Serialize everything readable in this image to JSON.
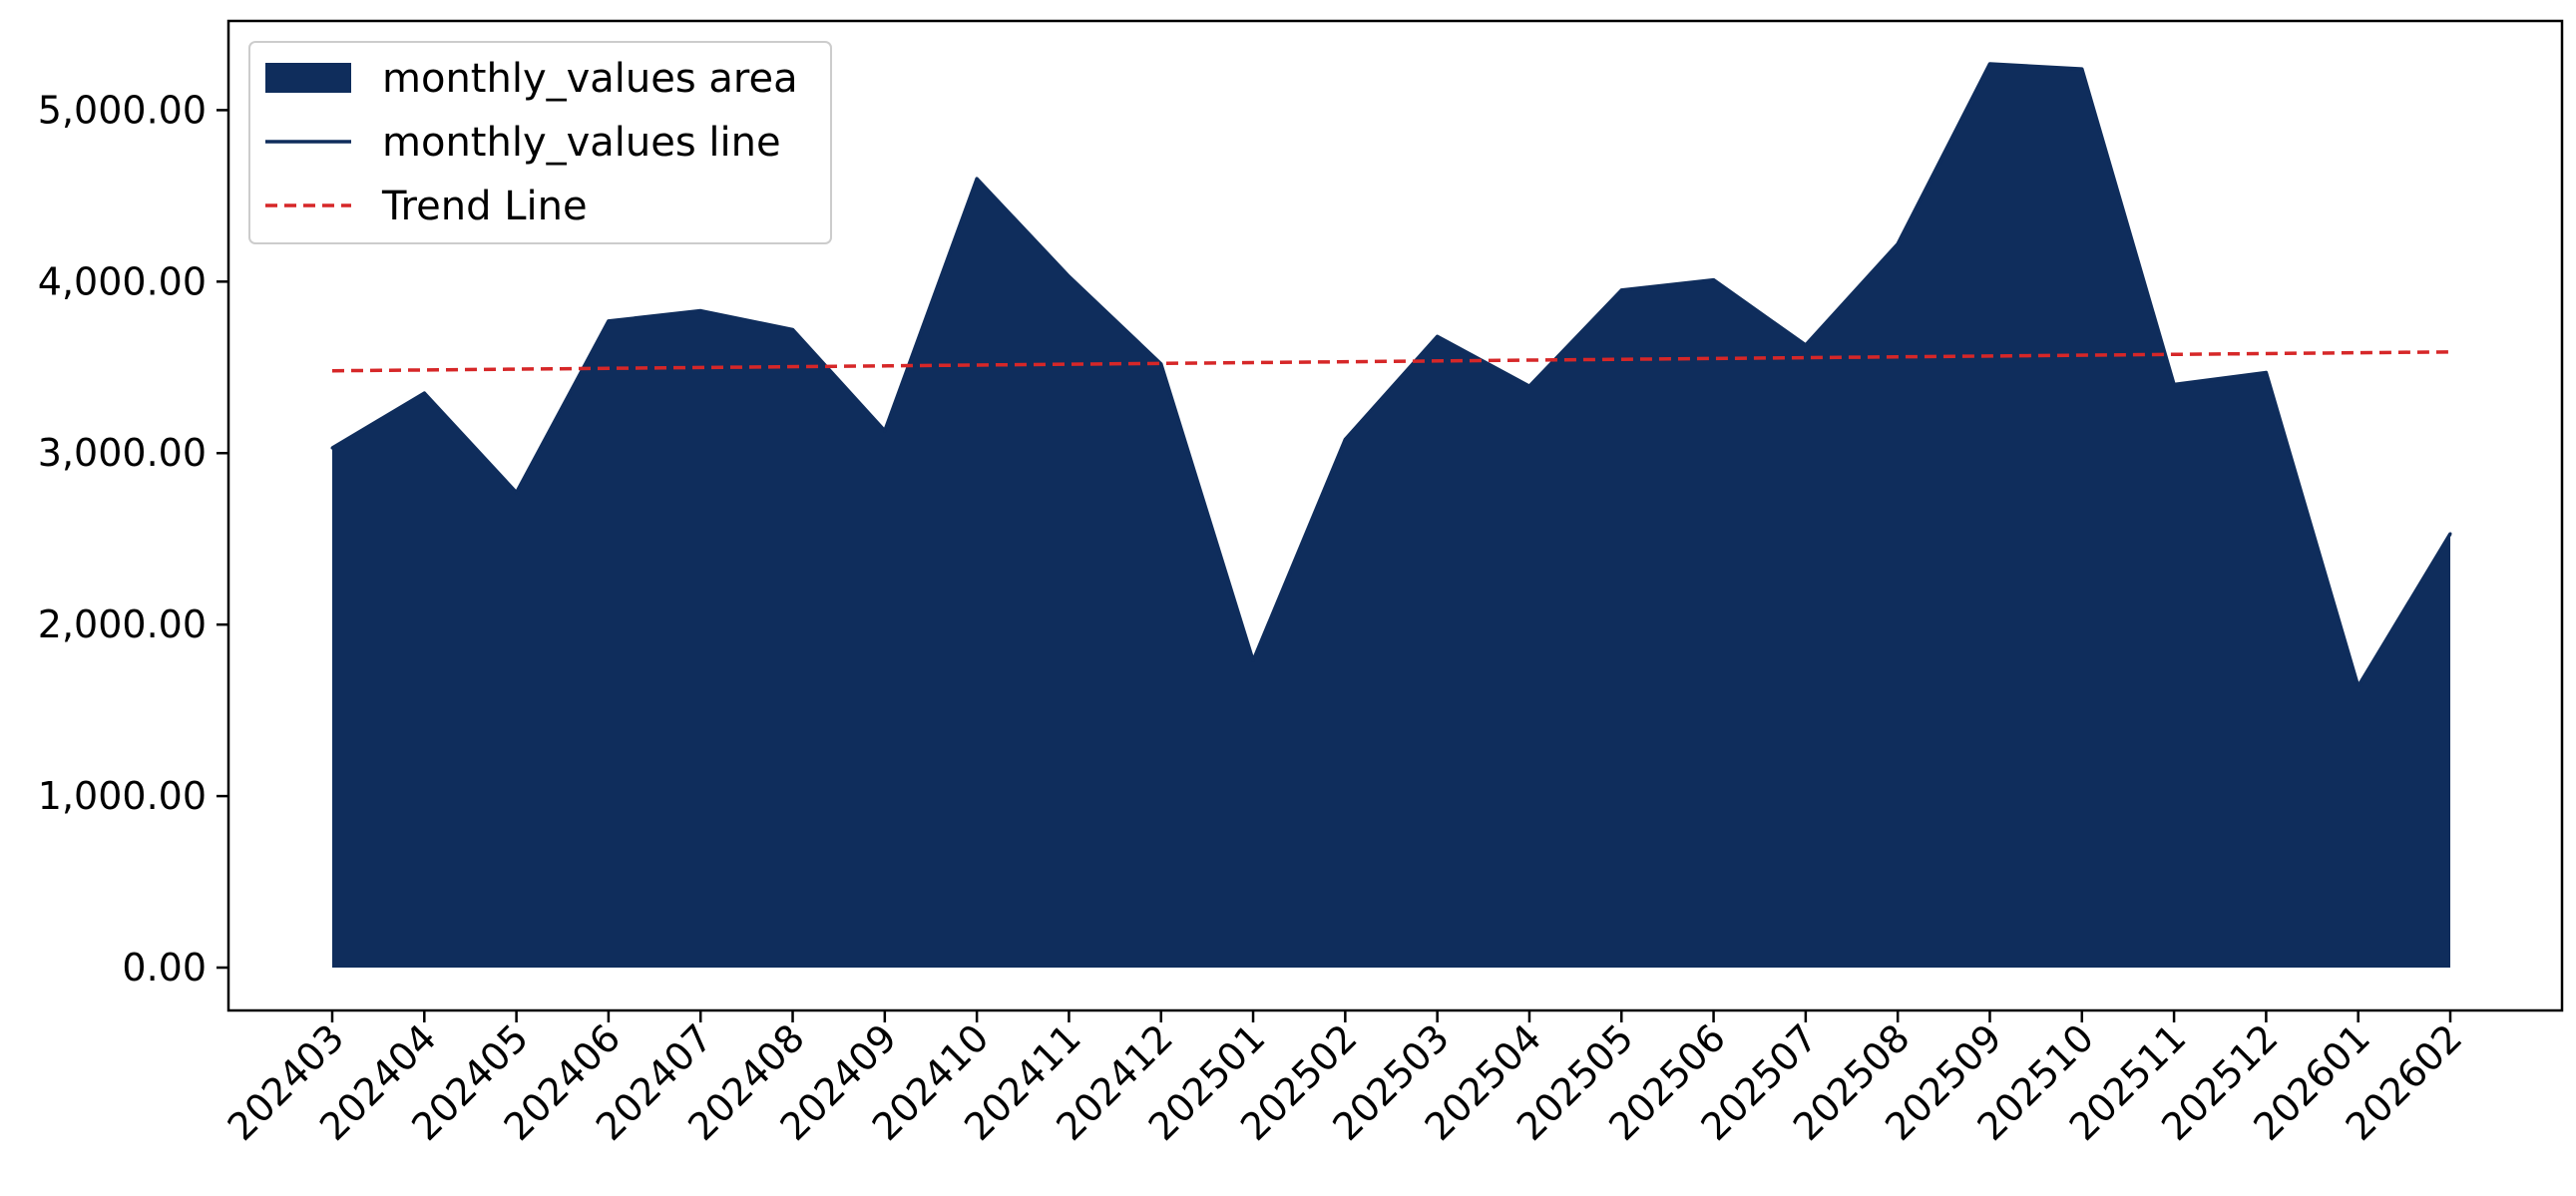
{
  "chart_data": {
    "type": "area",
    "x_labels": [
      "202403",
      "202404",
      "202405",
      "202406",
      "202407",
      "202408",
      "202409",
      "202410",
      "202411",
      "202412",
      "202501",
      "202502",
      "202503",
      "202504",
      "202505",
      "202506",
      "202507",
      "202508",
      "202509",
      "202510",
      "202511",
      "202512",
      "202601",
      "202602"
    ],
    "series": [
      {
        "name": "monthly_values",
        "values": [
          3030,
          3350,
          2770,
          3770,
          3830,
          3720,
          3130,
          4600,
          4030,
          3520,
          1790,
          3080,
          3680,
          3390,
          3950,
          4010,
          3630,
          4220,
          5270,
          5240,
          3400,
          3470,
          1640,
          2530
        ]
      }
    ],
    "trend": {
      "start": 3480,
      "end": 3590
    },
    "ylim": [
      -250,
      5520
    ],
    "yticks": [
      {
        "value": 0,
        "label": "0.00"
      },
      {
        "value": 1000,
        "label": "1,000.00"
      },
      {
        "value": 2000,
        "label": "2,000.00"
      },
      {
        "value": 3000,
        "label": "3,000.00"
      },
      {
        "value": 4000,
        "label": "4,000.00"
      },
      {
        "value": 5000,
        "label": "5,000.00"
      }
    ],
    "grid": false,
    "legend_position": "top-left",
    "legend": [
      {
        "label": "monthly_values area",
        "style": "patch"
      },
      {
        "label": "monthly_values line",
        "style": "line"
      },
      {
        "label": "Trend Line",
        "style": "dashed"
      }
    ],
    "colors": {
      "area": "#0f2d5c",
      "trend": "#d62728",
      "axes": "#000000"
    }
  }
}
